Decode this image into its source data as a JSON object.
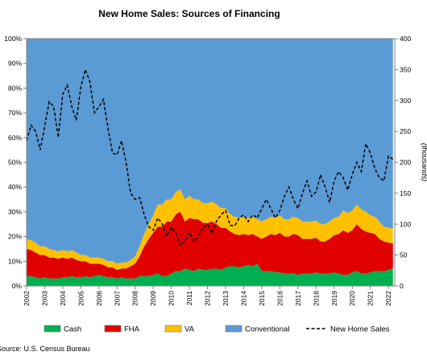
{
  "chart_data": {
    "type": "area",
    "title": "New Home Sales: Sources of Financing",
    "source": "Source: U.S. Census Bureau",
    "y_left": {
      "min": 0,
      "max": 100,
      "step": 10,
      "suffix": "%"
    },
    "y_right": {
      "min": 0,
      "max": 400,
      "step": 50,
      "label": "(thousands)"
    },
    "x_ticks": [
      "2002",
      "2003",
      "2004",
      "2005",
      "2006",
      "2007",
      "2008",
      "2009",
      "2010",
      "2011",
      "2012",
      "2013",
      "2014",
      "2015",
      "2016",
      "2017",
      "2018",
      "2019",
      "2020",
      "2021",
      "2022"
    ],
    "x": [
      2002.0,
      2002.25,
      2002.5,
      2002.75,
      2003.0,
      2003.25,
      2003.5,
      2003.75,
      2004.0,
      2004.25,
      2004.5,
      2004.75,
      2005.0,
      2005.25,
      2005.5,
      2005.75,
      2006.0,
      2006.25,
      2006.5,
      2006.75,
      2007.0,
      2007.25,
      2007.5,
      2007.75,
      2008.0,
      2008.25,
      2008.5,
      2008.75,
      2009.0,
      2009.25,
      2009.5,
      2009.75,
      2010.0,
      2010.25,
      2010.5,
      2010.75,
      2011.0,
      2011.25,
      2011.5,
      2011.75,
      2012.0,
      2012.25,
      2012.5,
      2012.75,
      2013.0,
      2013.25,
      2013.5,
      2013.75,
      2014.0,
      2014.25,
      2014.5,
      2014.75,
      2015.0,
      2015.25,
      2015.5,
      2015.75,
      2016.0,
      2016.25,
      2016.5,
      2016.75,
      2017.0,
      2017.25,
      2017.5,
      2017.75,
      2018.0,
      2018.25,
      2018.5,
      2018.75,
      2019.0,
      2019.25,
      2019.5,
      2019.75,
      2020.0,
      2020.25,
      2020.5,
      2020.75,
      2021.0,
      2021.25,
      2021.5,
      2021.75,
      2022.0,
      2022.25
    ],
    "series": [
      {
        "name": "Cash",
        "color": "#00b050",
        "values": [
          4,
          4,
          3.5,
          3,
          3.5,
          3,
          3,
          3,
          3.5,
          3.5,
          4,
          3.5,
          3.5,
          4,
          3.5,
          4,
          4.5,
          4,
          3.5,
          3.5,
          3,
          3.5,
          3,
          3,
          3,
          4,
          4,
          4,
          4.5,
          5,
          4,
          4,
          5,
          6,
          6,
          7,
          6.5,
          6,
          7,
          6.5,
          6.5,
          7,
          7,
          6.5,
          7.5,
          8,
          8,
          7.5,
          8,
          8.5,
          8,
          9,
          6,
          6,
          6,
          5.5,
          5.5,
          5,
          5,
          5,
          4.5,
          5,
          5,
          5,
          5.5,
          5,
          5,
          5,
          5.5,
          5,
          4.5,
          4.5,
          5.5,
          6,
          5,
          5,
          5.5,
          6,
          6,
          6,
          6.5,
          7
        ]
      },
      {
        "name": "FHA",
        "color": "#e00000",
        "values": [
          11,
          10.5,
          10,
          9.5,
          9,
          8.5,
          8.5,
          8,
          8,
          7.5,
          7.5,
          7,
          6.5,
          6,
          5.5,
          5,
          4.5,
          4.5,
          4,
          4,
          3.5,
          3.5,
          4,
          5,
          6,
          8,
          12,
          15,
          17,
          19,
          20,
          22,
          21,
          23,
          24,
          19,
          21,
          21,
          20,
          19,
          19,
          19,
          18,
          17,
          16,
          14,
          13,
          13,
          13,
          12,
          13,
          11,
          13,
          14,
          15,
          15,
          16,
          15,
          15,
          16,
          16,
          14,
          14,
          14,
          14,
          13,
          13,
          14,
          15,
          16,
          18,
          17,
          17,
          19,
          18,
          17,
          16,
          15,
          13,
          12,
          11,
          10
        ]
      },
      {
        "name": "VA",
        "color": "#ffc000",
        "values": [
          4,
          4,
          4,
          3.5,
          3.5,
          3.5,
          3,
          3,
          3,
          3,
          3,
          3,
          2.5,
          2.5,
          2.5,
          2.5,
          2.5,
          2.5,
          2.5,
          2.5,
          2.5,
          2.5,
          2.5,
          2.5,
          3,
          4,
          5,
          6,
          7,
          9,
          9,
          9,
          9,
          9,
          9,
          9,
          9,
          8,
          8,
          8,
          8,
          8,
          8,
          8,
          8,
          7,
          7,
          7,
          7,
          7,
          7,
          7,
          7,
          7,
          7,
          7,
          7,
          7,
          7,
          7,
          7,
          7,
          7,
          7,
          7,
          7,
          7,
          7,
          7,
          7,
          8,
          8,
          8,
          8,
          8,
          8,
          7,
          7,
          7,
          6,
          6,
          6
        ]
      },
      {
        "name": "Conventional",
        "color": "#5b9bd5",
        "values": [
          81,
          81.5,
          82.5,
          84,
          84,
          85,
          85.5,
          86,
          85.5,
          86,
          85.5,
          86.5,
          87.5,
          87.5,
          88.5,
          88.5,
          88.5,
          89,
          90,
          90,
          91,
          90.5,
          90.5,
          89.5,
          88,
          84,
          79,
          75,
          71.5,
          67,
          67,
          65,
          65,
          62,
          61,
          65,
          63.5,
          65,
          65,
          66.5,
          66.5,
          66,
          67,
          68.5,
          68.5,
          71,
          72,
          72.5,
          72,
          72.5,
          72,
          73,
          74,
          73,
          72,
          72.5,
          71.5,
          73,
          73,
          72,
          72.5,
          74,
          74,
          74,
          73.5,
          75,
          75,
          74,
          72.5,
          72,
          69.5,
          70.5,
          69.5,
          67,
          69,
          70,
          71.5,
          72,
          74,
          76,
          76.5,
          76
        ]
      }
    ],
    "line": {
      "name": "New Home Sales",
      "color": "#000000",
      "values": [
        235,
        260,
        250,
        220,
        258,
        298,
        290,
        240,
        310,
        325,
        290,
        268,
        322,
        350,
        330,
        280,
        290,
        302,
        255,
        215,
        212,
        235,
        200,
        150,
        140,
        143,
        115,
        96,
        90,
        110,
        100,
        80,
        95,
        85,
        66,
        72,
        87,
        72,
        80,
        95,
        100,
        85,
        105,
        115,
        122,
        98,
        97,
        110,
        115,
        104,
        115,
        110,
        125,
        140,
        125,
        110,
        122,
        145,
        160,
        140,
        125,
        150,
        170,
        145,
        152,
        180,
        160,
        135,
        170,
        185,
        175,
        155,
        180,
        200,
        185,
        230,
        215,
        190,
        175,
        170,
        210,
        205
      ]
    }
  },
  "legend": [
    {
      "label": "Cash",
      "color": "#00b050",
      "kind": "box"
    },
    {
      "label": "FHA",
      "color": "#e00000",
      "kind": "box"
    },
    {
      "label": "VA",
      "color": "#ffc000",
      "kind": "box"
    },
    {
      "label": "Conventional",
      "color": "#5b9bd5",
      "kind": "box"
    },
    {
      "label": "New Home Sales",
      "color": "#000000",
      "kind": "dash"
    }
  ]
}
